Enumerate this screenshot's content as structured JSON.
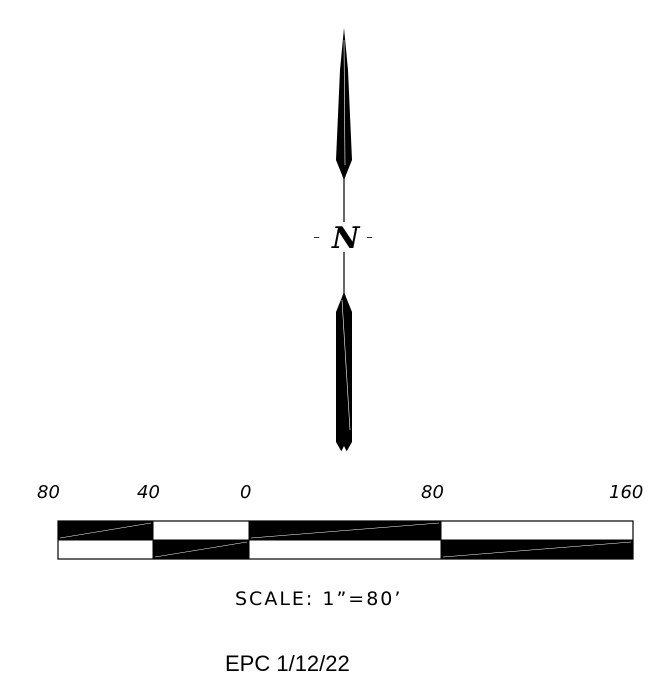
{
  "north_arrow": {
    "letter": "N",
    "left_dash": "-",
    "right_dash": "-"
  },
  "scale_bar": {
    "tick_labels": [
      "80",
      "40",
      "0",
      "80",
      "160"
    ],
    "scale_text": "SCALE:  1”=80’",
    "fill_color": "#000000",
    "outline_color": "#000000"
  },
  "stamp": {
    "text": "EPC 1/12/22"
  }
}
